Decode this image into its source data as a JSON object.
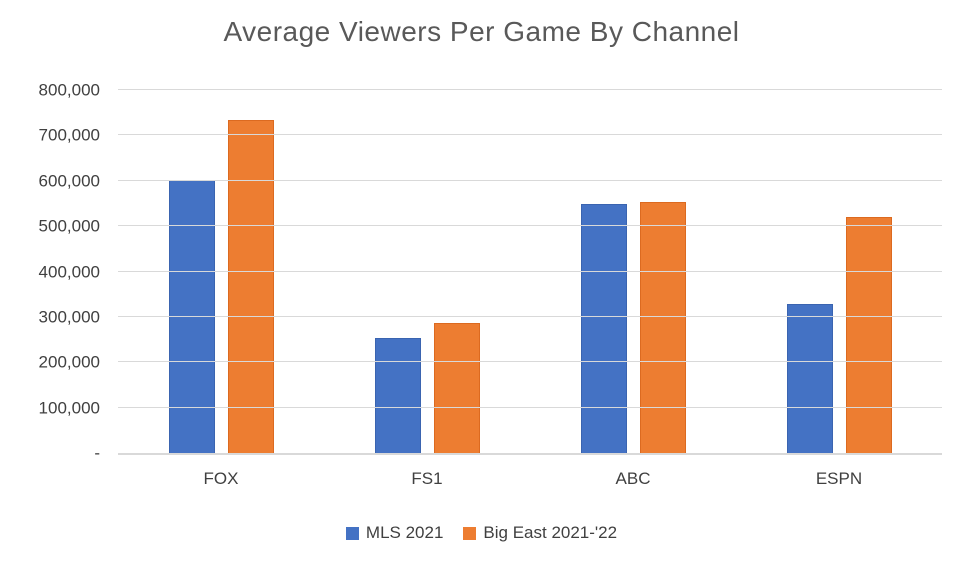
{
  "chart_data": {
    "type": "bar",
    "title": "Average Viewers Per Game By Channel",
    "categories": [
      "FOX",
      "FS1",
      "ABC",
      "ESPN"
    ],
    "series": [
      {
        "name": "MLS 2021",
        "color": "#4472C4",
        "border_color": "#3A64B0",
        "values": [
          602000,
          254000,
          548000,
          328000
        ]
      },
      {
        "name": "Big East 2021-'22",
        "color": "#ED7D31",
        "border_color": "#DC6A20",
        "values": [
          733000,
          287000,
          553000,
          521000
        ]
      }
    ],
    "xlabel": "",
    "ylabel": "",
    "ylim": [
      0,
      800000
    ],
    "ytick_step": 100000,
    "ytick_labels": [
      "-",
      "100,000",
      "200,000",
      "300,000",
      "400,000",
      "500,000",
      "600,000",
      "700,000",
      "800,000"
    ],
    "grid": true,
    "legend_position": "bottom"
  },
  "colors": {
    "background": "#FFFFFF",
    "gridline": "#D9D9D9",
    "axis_line": "#D9D9D9",
    "title_text": "#595959",
    "tick_label_text": "#404040",
    "legend_text": "#404040",
    "series_blue": "#4472C4",
    "series_orange": "#ED7D31"
  }
}
